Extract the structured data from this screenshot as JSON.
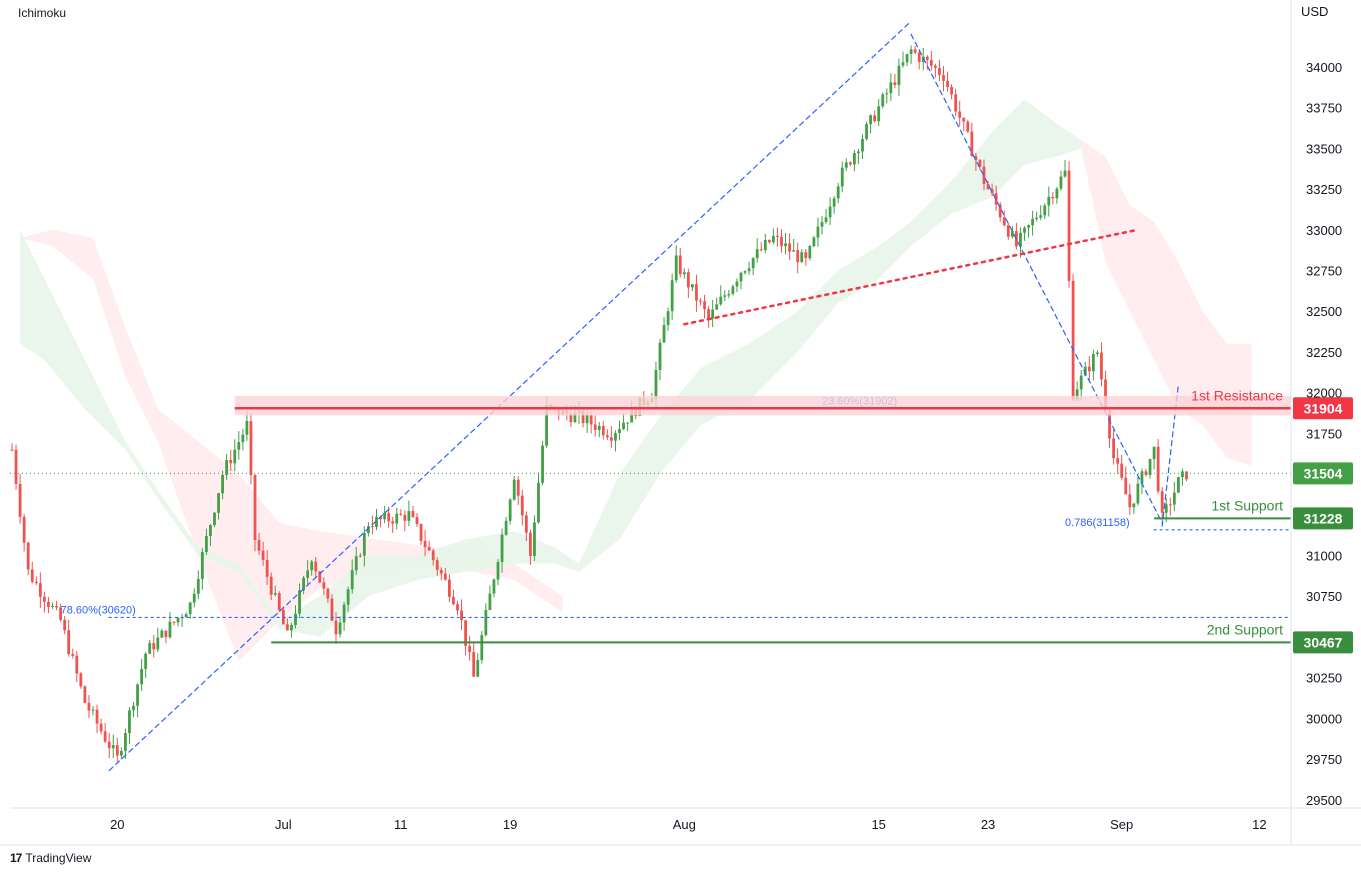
{
  "indicator_label": "Ichimoku",
  "currency": "USD",
  "footer": {
    "brand": "TradingView",
    "logo_glyph": "17"
  },
  "colors": {
    "up": "#43a047",
    "down": "#ef5350",
    "resistance": "#f23645",
    "support": "#388e3c",
    "fib": "#2962ff",
    "cloud_green": "#e8f5e9",
    "cloud_red": "#ffebee",
    "grid_text": "#131722",
    "last_price": "#43a047"
  },
  "chart_data": {
    "type": "candlestick",
    "ylim": [
      29450,
      34300
    ],
    "y_ticks": [
      29500,
      29750,
      30000,
      30250,
      30500,
      30750,
      31000,
      31250,
      31500,
      31750,
      32000,
      32250,
      32500,
      32750,
      33000,
      33250,
      33500,
      33750,
      34000
    ],
    "x_ticks": [
      {
        "label": "20",
        "bar": 26
      },
      {
        "label": "Jul",
        "bar": 67
      },
      {
        "label": "11",
        "bar": 96
      },
      {
        "label": "19",
        "bar": 123
      },
      {
        "label": "Aug",
        "bar": 166
      },
      {
        "label": "15",
        "bar": 214
      },
      {
        "label": "23",
        "bar": 241
      },
      {
        "label": "Sep",
        "bar": 274
      },
      {
        "label": "12",
        "bar": 308
      }
    ],
    "bar_count_visible": 320,
    "price_path": [
      [
        0,
        31650
      ],
      [
        4,
        30900
      ],
      [
        12,
        30600
      ],
      [
        18,
        30100
      ],
      [
        26,
        29750
      ],
      [
        33,
        30400
      ],
      [
        44,
        30700
      ],
      [
        52,
        31500
      ],
      [
        58,
        31800
      ],
      [
        60,
        31100
      ],
      [
        68,
        30500
      ],
      [
        74,
        31000
      ],
      [
        80,
        30550
      ],
      [
        88,
        31200
      ],
      [
        98,
        31250
      ],
      [
        110,
        30700
      ],
      [
        114,
        30250
      ],
      [
        118,
        30750
      ],
      [
        124,
        31500
      ],
      [
        128,
        31000
      ],
      [
        132,
        31900
      ],
      [
        140,
        31850
      ],
      [
        148,
        31750
      ],
      [
        158,
        32000
      ],
      [
        164,
        32800
      ],
      [
        172,
        32450
      ],
      [
        180,
        32750
      ],
      [
        188,
        32950
      ],
      [
        196,
        32800
      ],
      [
        204,
        33300
      ],
      [
        214,
        33750
      ],
      [
        222,
        34100
      ],
      [
        230,
        33950
      ],
      [
        240,
        33300
      ],
      [
        248,
        32900
      ],
      [
        256,
        33200
      ],
      [
        260,
        33350
      ],
      [
        262,
        32000
      ],
      [
        268,
        32250
      ],
      [
        272,
        31600
      ],
      [
        276,
        31300
      ],
      [
        282,
        31650
      ],
      [
        284,
        31220
      ],
      [
        288,
        31450
      ],
      [
        290,
        31504
      ]
    ],
    "ichimoku_cloud": {
      "green_upper": [
        [
          2,
          33000
        ],
        [
          8,
          32700
        ],
        [
          18,
          32200
        ],
        [
          28,
          31700
        ],
        [
          36,
          31400
        ],
        [
          46,
          31050
        ],
        [
          56,
          30950
        ],
        [
          66,
          30600
        ],
        [
          76,
          30750
        ],
        [
          88,
          31000
        ],
        [
          100,
          31000
        ],
        [
          112,
          31100
        ],
        [
          124,
          31150
        ],
        [
          134,
          31050
        ],
        [
          140,
          30950
        ],
        [
          150,
          31500
        ],
        [
          160,
          31850
        ],
        [
          170,
          32150
        ],
        [
          182,
          32300
        ],
        [
          194,
          32500
        ],
        [
          204,
          32750
        ],
        [
          214,
          32900
        ],
        [
          222,
          33050
        ],
        [
          232,
          33300
        ],
        [
          242,
          33600
        ],
        [
          250,
          33800
        ],
        [
          258,
          33650
        ],
        [
          264,
          33550
        ]
      ],
      "green_lower": [
        [
          2,
          32300
        ],
        [
          8,
          32200
        ],
        [
          18,
          31900
        ],
        [
          28,
          31650
        ],
        [
          36,
          31350
        ],
        [
          46,
          31000
        ],
        [
          56,
          30900
        ],
        [
          66,
          30550
        ],
        [
          76,
          30500
        ],
        [
          88,
          30750
        ],
        [
          100,
          30850
        ],
        [
          112,
          30900
        ],
        [
          124,
          30950
        ],
        [
          134,
          30950
        ],
        [
          140,
          30900
        ],
        [
          150,
          31100
        ],
        [
          160,
          31500
        ],
        [
          170,
          31800
        ],
        [
          182,
          31950
        ],
        [
          194,
          32250
        ],
        [
          204,
          32550
        ],
        [
          214,
          32700
        ],
        [
          222,
          32900
        ],
        [
          232,
          33100
        ],
        [
          242,
          33200
        ],
        [
          250,
          33400
        ],
        [
          258,
          33450
        ],
        [
          264,
          33500
        ]
      ],
      "red_upper": [
        [
          2,
          32950
        ],
        [
          10,
          33000
        ],
        [
          20,
          32950
        ],
        [
          28,
          32400
        ],
        [
          36,
          31900
        ],
        [
          46,
          31700
        ],
        [
          56,
          31500
        ],
        [
          66,
          31200
        ],
        [
          76,
          31150
        ],
        [
          90,
          31100
        ],
        [
          104,
          31050
        ],
        [
          114,
          31050
        ],
        [
          124,
          30950
        ],
        [
          136,
          30750
        ],
        [
          264,
          33550
        ],
        [
          270,
          33450
        ],
        [
          276,
          33150
        ],
        [
          282,
          33050
        ],
        [
          288,
          32800
        ],
        [
          294,
          32500
        ],
        [
          300,
          32300
        ],
        [
          306,
          32300
        ]
      ],
      "red_lower": [
        [
          2,
          32950
        ],
        [
          10,
          32900
        ],
        [
          20,
          32700
        ],
        [
          28,
          32100
        ],
        [
          36,
          31700
        ],
        [
          46,
          31000
        ],
        [
          56,
          30350
        ],
        [
          66,
          30600
        ],
        [
          76,
          30800
        ],
        [
          90,
          30900
        ],
        [
          104,
          30950
        ],
        [
          114,
          30900
        ],
        [
          124,
          30850
        ],
        [
          136,
          30650
        ],
        [
          264,
          33500
        ],
        [
          270,
          32800
        ],
        [
          276,
          32500
        ],
        [
          282,
          32200
        ],
        [
          288,
          31900
        ],
        [
          294,
          31800
        ],
        [
          300,
          31600
        ],
        [
          306,
          31550
        ]
      ]
    },
    "levels": [
      {
        "name": "1st Resistance",
        "value": 31904,
        "label": "31904",
        "kind": "resistance",
        "from_bar": 55
      },
      {
        "name": "1st Support",
        "value": 31228,
        "label": "31228",
        "kind": "support",
        "from_bar": 282
      },
      {
        "name": "2nd Support",
        "value": 30467,
        "label": "30467",
        "kind": "support",
        "from_bar": 64
      }
    ],
    "last_price": {
      "value": 31504,
      "label": "31504"
    },
    "fib_annotations": [
      {
        "text": "23.60%(31902)",
        "value": 31902,
        "bar": 200
      },
      {
        "text": "0.786(31158)",
        "value": 31158,
        "bar": 260
      },
      {
        "text": "78.60%(30620)",
        "value": 30620,
        "bar": 12
      }
    ],
    "trend_lines": [
      {
        "style": "dashed",
        "color": "fib",
        "from": [
          24,
          29680
        ],
        "to": [
          222,
          34280
        ]
      },
      {
        "style": "dashed",
        "color": "fib",
        "from": [
          222,
          34200
        ],
        "to": [
          284,
          31200
        ]
      },
      {
        "style": "dashed",
        "color": "fib",
        "from": [
          284,
          31180
        ],
        "to": [
          288,
          32050
        ]
      },
      {
        "style": "dotted",
        "color": "resistance",
        "from": [
          166,
          32420
        ],
        "to": [
          278,
          33000
        ]
      },
      {
        "style": "dotted",
        "color": "fib",
        "from": [
          24,
          30620
        ],
        "to": [
          320,
          30620
        ]
      },
      {
        "style": "dotted",
        "color": "fib",
        "from": [
          282,
          31158
        ],
        "to": [
          320,
          31158
        ]
      }
    ]
  }
}
